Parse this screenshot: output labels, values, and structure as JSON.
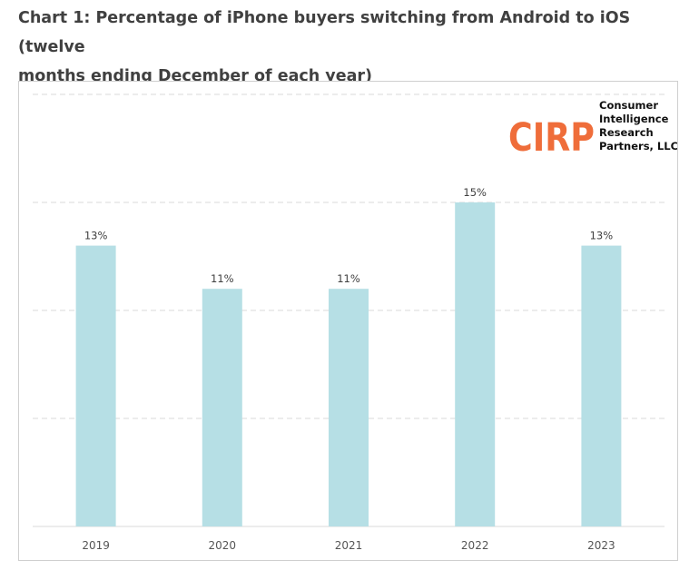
{
  "page": {
    "title_line1": "Chart 1: Percentage of iPhone buyers switching from Android to iOS (twelve",
    "title_line2": "months ending December of each year)"
  },
  "logo": {
    "mark": "CIRP",
    "lines": [
      "Consumer",
      "Intelligence",
      "Research",
      "Partners, LLC"
    ],
    "mark_color": "#ef6d3a"
  },
  "chart_data": {
    "type": "bar",
    "categories": [
      "2019",
      "2020",
      "2021",
      "2022",
      "2023"
    ],
    "values": [
      13,
      11,
      11,
      15,
      13
    ],
    "value_labels": [
      "13%",
      "11%",
      "11%",
      "15%",
      "13%"
    ],
    "ylim": [
      0,
      20
    ],
    "y_gridlines": [
      5,
      10,
      15,
      20
    ],
    "grid": true,
    "bar_color": "#b6dfe5",
    "gridline_color": "#d9d9d9",
    "title": "",
    "xlabel": "",
    "ylabel": ""
  }
}
